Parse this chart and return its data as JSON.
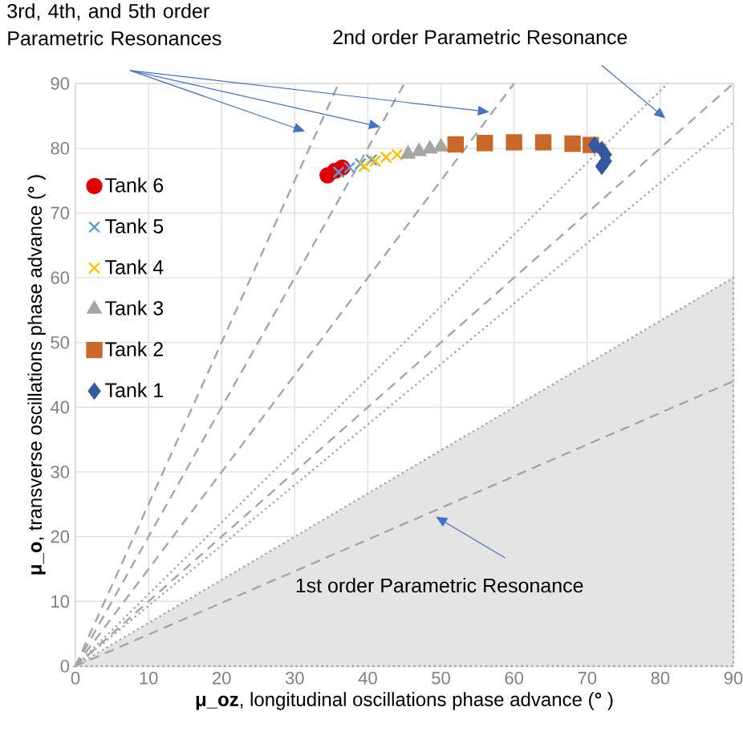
{
  "chart_data": {
    "type": "scatter",
    "xlabel": "**μ_oz**, longitudinal oscillations phase advance (**°** )",
    "ylabel": "**μ_o**, transverse oscillations phase advance (**°** )",
    "xlim": [
      0,
      90
    ],
    "ylim": [
      0,
      90
    ],
    "xticks": [
      0,
      10,
      20,
      30,
      40,
      50,
      60,
      70,
      80,
      90
    ],
    "yticks": [
      0,
      10,
      20,
      30,
      40,
      50,
      60,
      70,
      80,
      90
    ],
    "grid": true,
    "legend": "left",
    "annotations": [
      {
        "text": "3rd, 4th, and 5th order Parametric Resonances",
        "x": 41.7,
        "y": 83.3
      },
      "2nd order Parametric Resonance",
      {
        "text": "1st order Parametric Resonance",
        "x": 49.3,
        "y": 23.1
      }
    ],
    "series": [
      {
        "type": "area",
        "color": "#e4e4e4",
        "line_style": "dotted",
        "x": [
          0,
          90
        ],
        "values": [
          0,
          60
        ]
      },
      {
        "type": "line",
        "color": "#a6a6a6",
        "line_style": "dashed",
        "x": [
          0,
          36
        ],
        "values": [
          0,
          90
        ]
      },
      {
        "type": "line",
        "color": "#a6a6a6",
        "line_style": "dashed",
        "x": [
          0,
          45
        ],
        "values": [
          0,
          90
        ]
      },
      {
        "type": "line",
        "color": "#a6a6a6",
        "line_style": "dashed",
        "x": [
          0,
          60
        ],
        "values": [
          0,
          90
        ]
      },
      {
        "type": "line",
        "color": "#a6a6a6",
        "line_style": "dotted",
        "x": [
          0,
          81
        ],
        "values": [
          0,
          90
        ]
      },
      {
        "type": "line",
        "color": "#a6a6a6",
        "line_style": "dashed",
        "x": [
          0,
          90
        ],
        "values": [
          0,
          90
        ]
      },
      {
        "type": "line",
        "color": "#a6a6a6",
        "line_style": "dotted",
        "x": [
          0,
          90
        ],
        "values": [
          0,
          84
        ]
      },
      {
        "type": "line",
        "color": "#a6a6a6",
        "line_style": "dashed",
        "x": [
          0,
          90
        ],
        "values": [
          0,
          44
        ]
      },
      {
        "name": "Tank 6",
        "color": "#e00000",
        "marker": "circle",
        "x": [
          34.5,
          35.5,
          36.5
        ],
        "values": [
          75.8,
          76.5,
          77.0
        ]
      },
      {
        "name": "Tank 5",
        "color": "#5b9bd5",
        "marker": "cross",
        "x": [
          36,
          37.5,
          39,
          40.5
        ],
        "values": [
          76.3,
          77.0,
          77.6,
          78.2
        ]
      },
      {
        "name": "Tank 4",
        "color": "#ffc000",
        "marker": "cross",
        "x": [
          39.5,
          41,
          42.5,
          44
        ],
        "values": [
          77.2,
          78.0,
          78.6,
          79.0
        ]
      },
      {
        "name": "Tank 3",
        "color": "#a5a5a5",
        "marker": "triangle",
        "x": [
          45.5,
          47,
          48.5,
          50
        ],
        "values": [
          79.1,
          79.5,
          79.9,
          80.2
        ]
      },
      {
        "name": "Tank 2",
        "color": "#c8682a",
        "marker": "square",
        "x": [
          52,
          56,
          60,
          64,
          68,
          70.5
        ],
        "values": [
          80.6,
          80.8,
          80.9,
          80.9,
          80.7,
          80.5
        ]
      },
      {
        "name": "Tank 1",
        "color": "#335aa0",
        "marker": "diamond",
        "x": [
          71,
          72,
          72.5,
          72.5,
          72
        ],
        "values": [
          80.5,
          79.8,
          79,
          78,
          77.2
        ]
      }
    ]
  }
}
